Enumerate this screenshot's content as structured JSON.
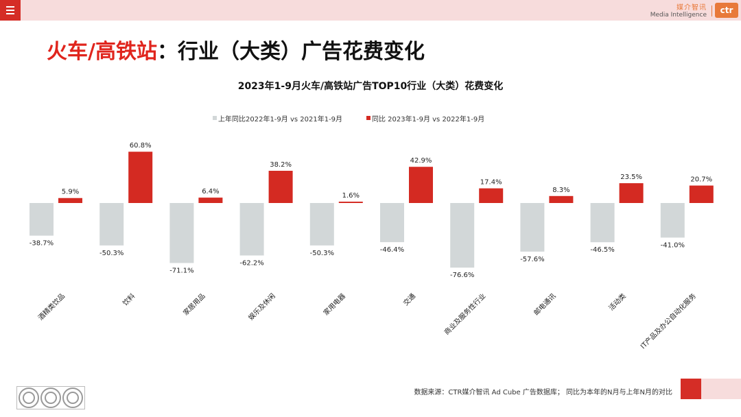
{
  "header": {
    "brand_cn": "媒介智讯",
    "brand_en": "Media Intelligence",
    "logo_text": "ctr"
  },
  "title": {
    "part1": "火车/高铁站",
    "colon": "：",
    "part2": "行业（大类）广告花费变化"
  },
  "colors": {
    "prev": "#d2d7d8",
    "curr": "#d42a22",
    "accent": "#d52d26",
    "band": "#f7dcdc"
  },
  "chart_data": {
    "type": "bar",
    "title": "2023年1-9月火车/高铁站广告TOP10行业（大类）花费变化",
    "xlabel": "",
    "ylabel": "",
    "ylim": [
      -80,
      65
    ],
    "grid": false,
    "legend_position": "top",
    "categories": [
      "酒精类饮品",
      "饮料",
      "家居用品",
      "娱乐及休闲",
      "家用电器",
      "交通",
      "商业及服务性行业",
      "邮电通讯",
      "活动类",
      "IT产品及办公自动化服务"
    ],
    "series": [
      {
        "name": "上年同比2022年1-9月  vs  2021年1-9月",
        "values": [
          -38.7,
          -50.3,
          -71.1,
          -62.2,
          -50.3,
          -46.4,
          -76.6,
          -57.6,
          -46.5,
          -41.0
        ]
      },
      {
        "name": "同比 2023年1-9月  vs  2022年1-9月",
        "values": [
          5.9,
          60.8,
          6.4,
          38.2,
          1.6,
          42.9,
          17.4,
          8.3,
          23.5,
          20.7
        ]
      }
    ]
  },
  "footer": {
    "source": "数据来源：CTR媒介智讯 Ad Cube 广告数据库；  同比为本年的N月与上年N月的对比"
  }
}
